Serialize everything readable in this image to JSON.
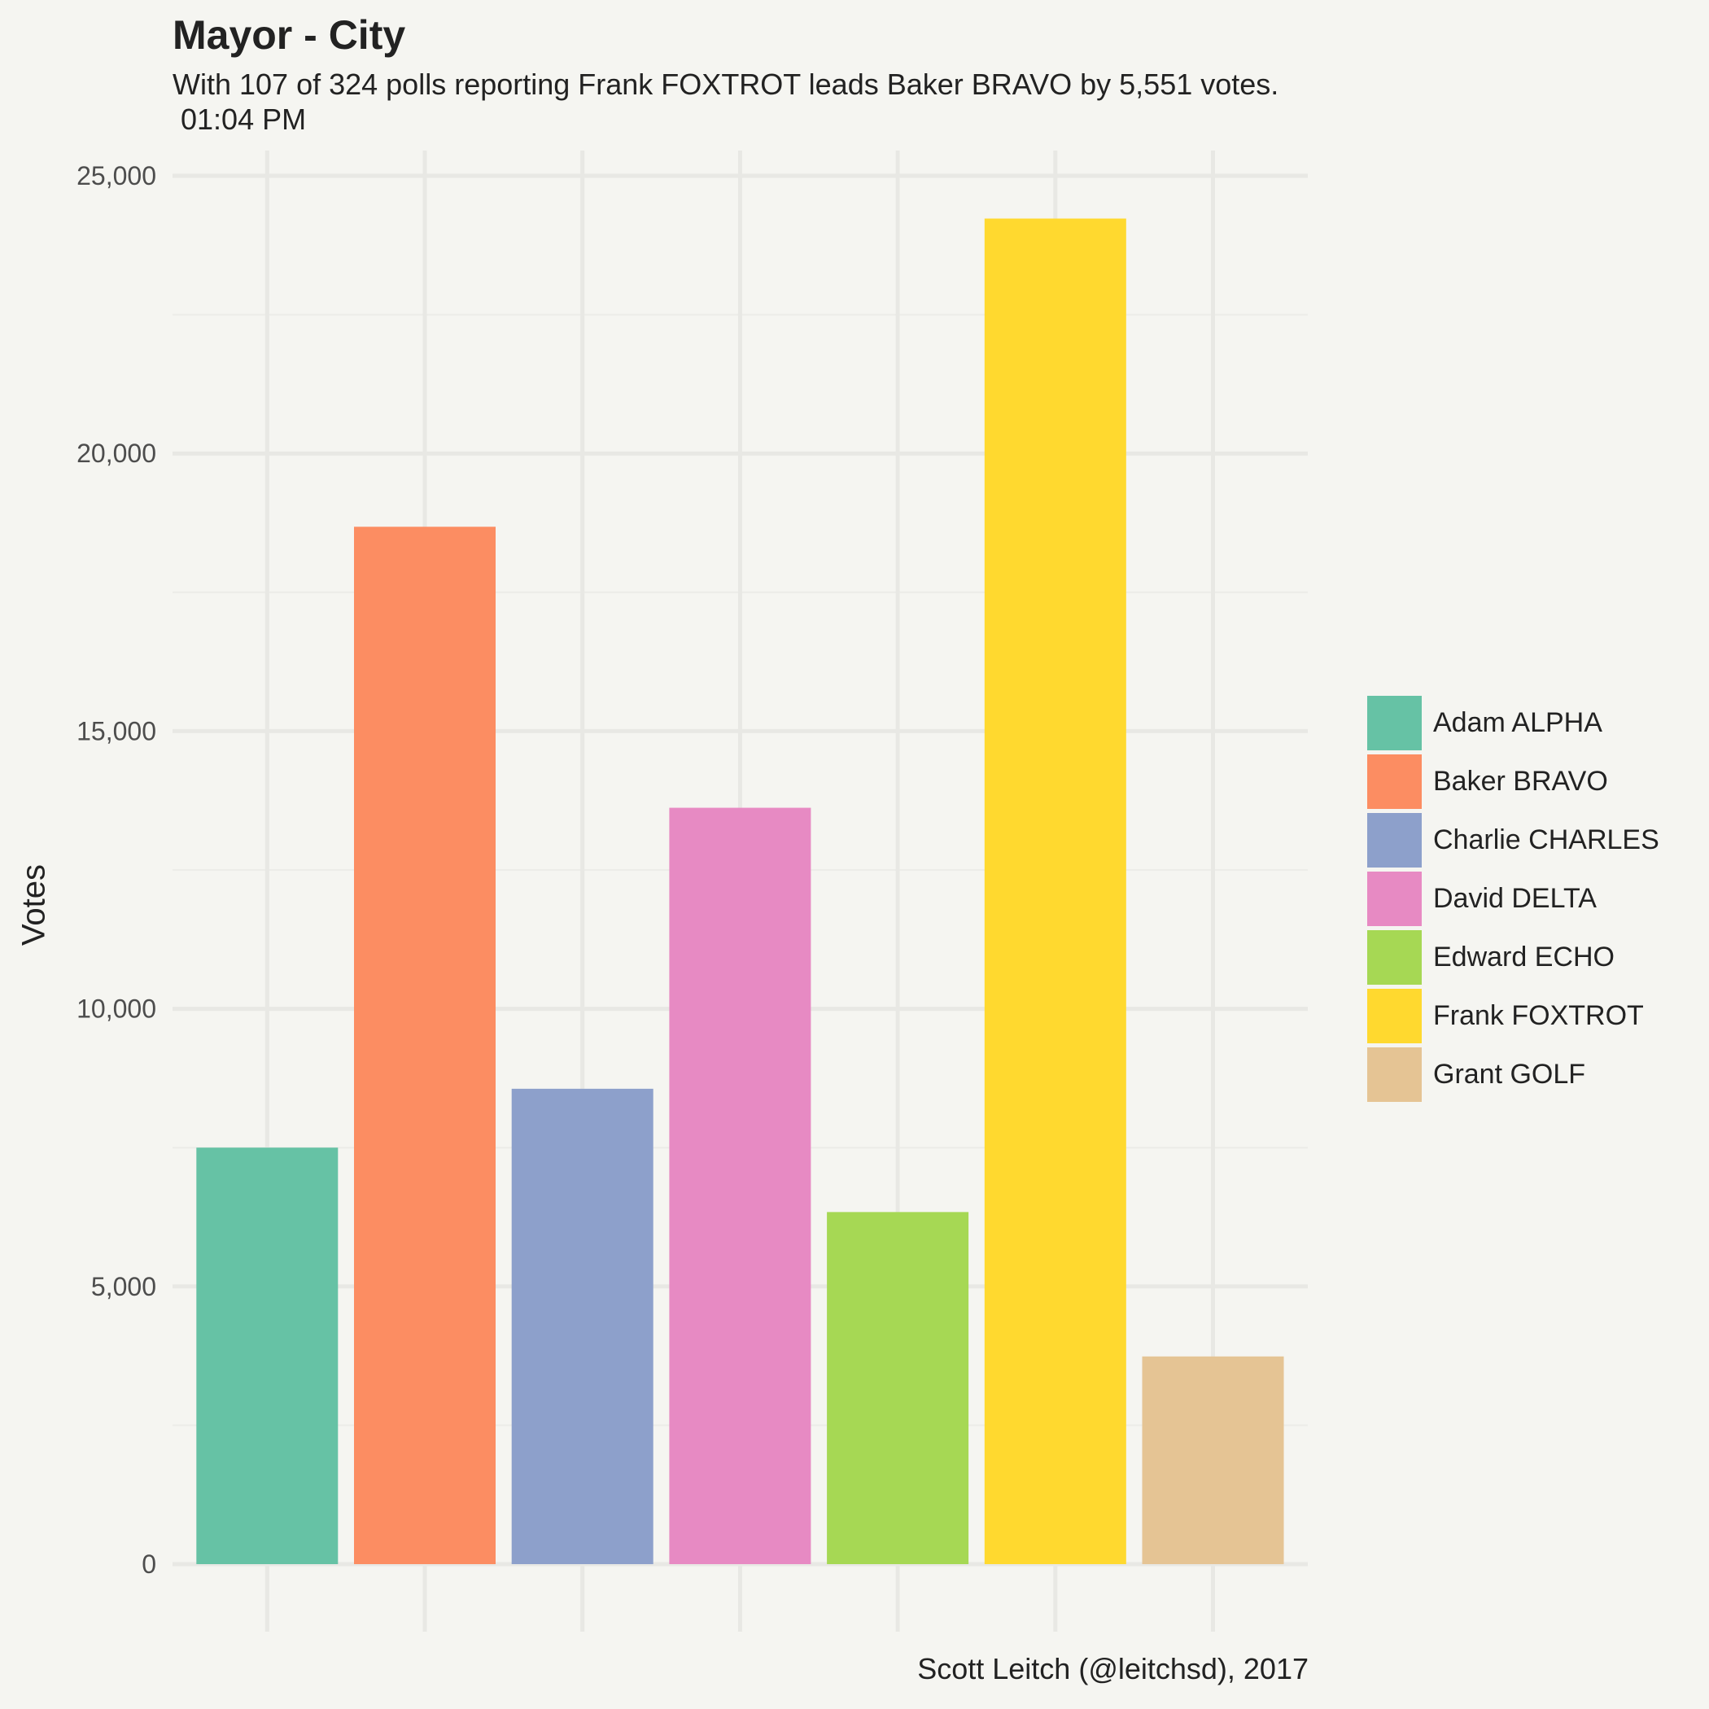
{
  "chart_data": {
    "type": "bar",
    "title": "Mayor - City",
    "subtitle": "With 107 of 324 polls reporting Frank FOXTROT leads Baker BRAVO by 5,551 votes.\n 01:04 PM",
    "xlabel": "",
    "ylabel": "Votes",
    "caption": "Scott Leitch (@leitchsd), 2017",
    "categories": [
      "Adam ALPHA",
      "Baker BRAVO",
      "Charlie CHARLES",
      "David DELTA",
      "Edward ECHO",
      "Frank FOXTROT",
      "Grant GOLF"
    ],
    "values": [
      7500,
      18680,
      8560,
      13620,
      6340,
      24230,
      3740
    ],
    "colors": [
      "#66c2a5",
      "#fc8d62",
      "#8da0cb",
      "#e78ac3",
      "#a6d854",
      "#ffd92f",
      "#e5c494"
    ],
    "ylim": [
      0,
      25000
    ],
    "yticks": [
      0,
      5000,
      10000,
      15000,
      20000,
      25000
    ],
    "ytick_labels": [
      "0",
      "5,000",
      "10,000",
      "15,000",
      "20,000",
      "25,000"
    ],
    "grid": true,
    "legend_position": "right"
  }
}
